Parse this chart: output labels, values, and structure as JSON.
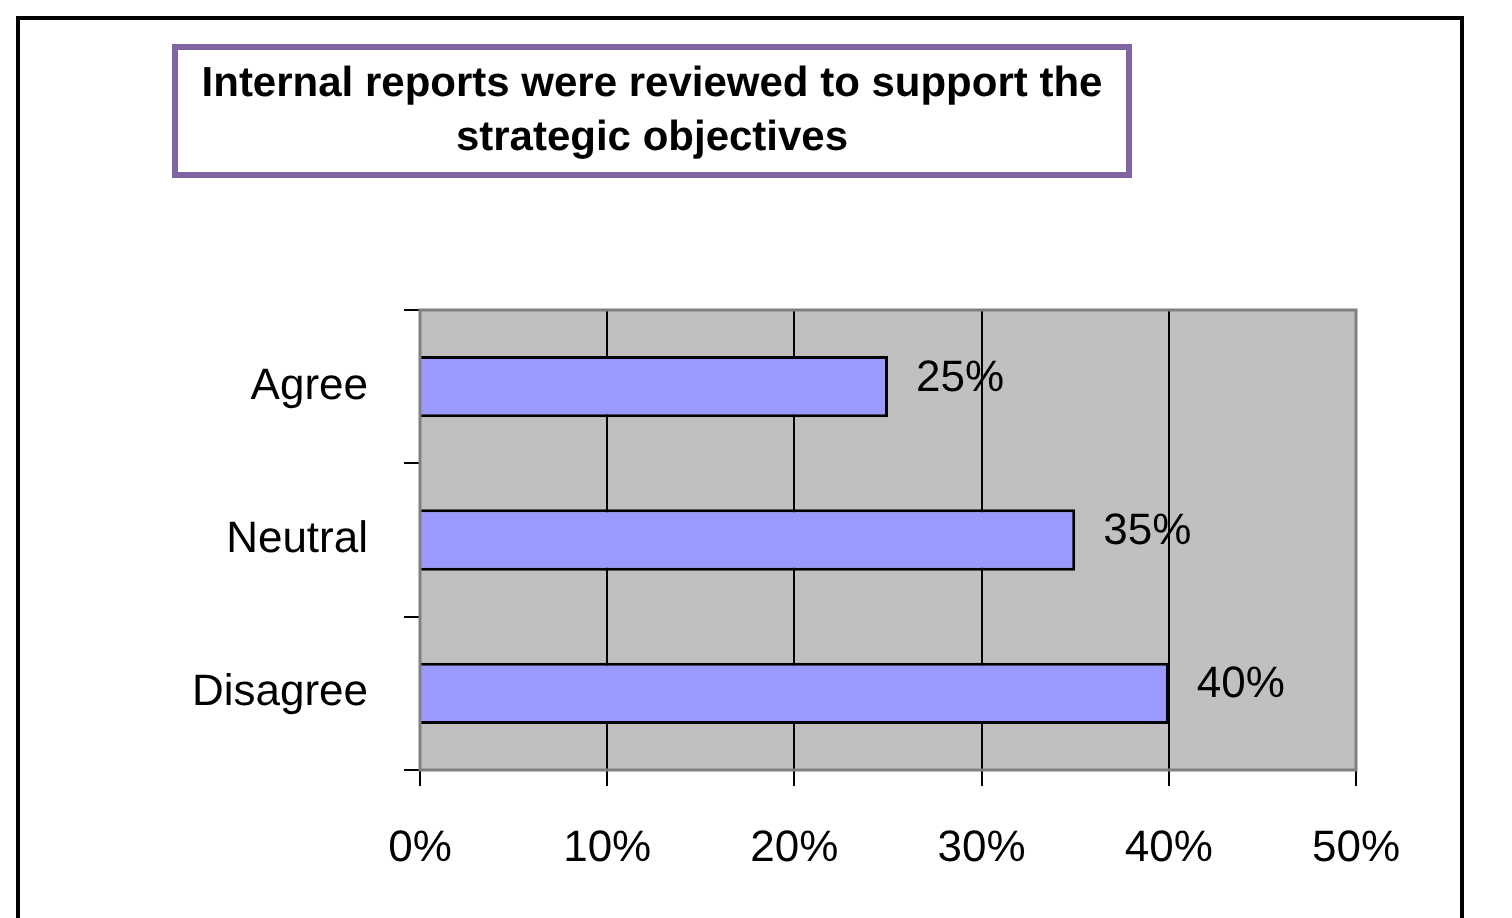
{
  "chart_data": {
    "type": "bar",
    "orientation": "horizontal",
    "title": "Internal reports were reviewed to support the strategic objectives",
    "categories": [
      "Agree",
      "Neutral",
      "Disagree"
    ],
    "values": [
      25,
      35,
      40
    ],
    "color": "#9999ff",
    "value_labels": [
      "25%",
      "35%",
      "40%"
    ],
    "xlim": [
      0,
      50
    ],
    "xticks": [
      {
        "value": 0,
        "label": "0%"
      },
      {
        "value": 10,
        "label": "10%"
      },
      {
        "value": 20,
        "label": "20%"
      },
      {
        "value": 30,
        "label": "30%"
      },
      {
        "value": 40,
        "label": "40%"
      },
      {
        "value": 50,
        "label": "50%"
      }
    ],
    "grid": "x",
    "legend": false
  }
}
